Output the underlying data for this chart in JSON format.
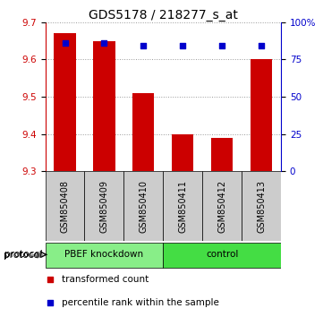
{
  "title": "GDS5178 / 218277_s_at",
  "samples": [
    "GSM850408",
    "GSM850409",
    "GSM850410",
    "GSM850411",
    "GSM850412",
    "GSM850413"
  ],
  "bar_values": [
    9.67,
    9.65,
    9.51,
    9.4,
    9.39,
    9.6
  ],
  "bar_bottom": 9.3,
  "percentile_values": [
    86,
    86,
    84,
    84,
    84,
    84
  ],
  "bar_color": "#cc0000",
  "dot_color": "#0000cc",
  "ylim_left": [
    9.3,
    9.7
  ],
  "ylim_right": [
    0,
    100
  ],
  "yticks_left": [
    9.3,
    9.4,
    9.5,
    9.6,
    9.7
  ],
  "yticks_right": [
    0,
    25,
    50,
    75,
    100
  ],
  "ytick_labels_right": [
    "0",
    "25",
    "50",
    "75",
    "100%"
  ],
  "groups": [
    {
      "label": "PBEF knockdown",
      "indices": [
        0,
        1,
        2
      ],
      "color": "#88ee88"
    },
    {
      "label": "control",
      "indices": [
        3,
        4,
        5
      ],
      "color": "#44dd44"
    }
  ],
  "protocol_label": "protocol",
  "legend_items": [
    {
      "label": "transformed count",
      "color": "#cc0000",
      "marker": "s"
    },
    {
      "label": "percentile rank within the sample",
      "color": "#0000cc",
      "marker": "s"
    }
  ],
  "sample_box_color": "#cccccc",
  "grid_color": "#999999",
  "background_color": "#ffffff",
  "bar_width": 0.55,
  "title_fontsize": 10,
  "tick_fontsize": 7.5,
  "label_fontsize": 7.5
}
